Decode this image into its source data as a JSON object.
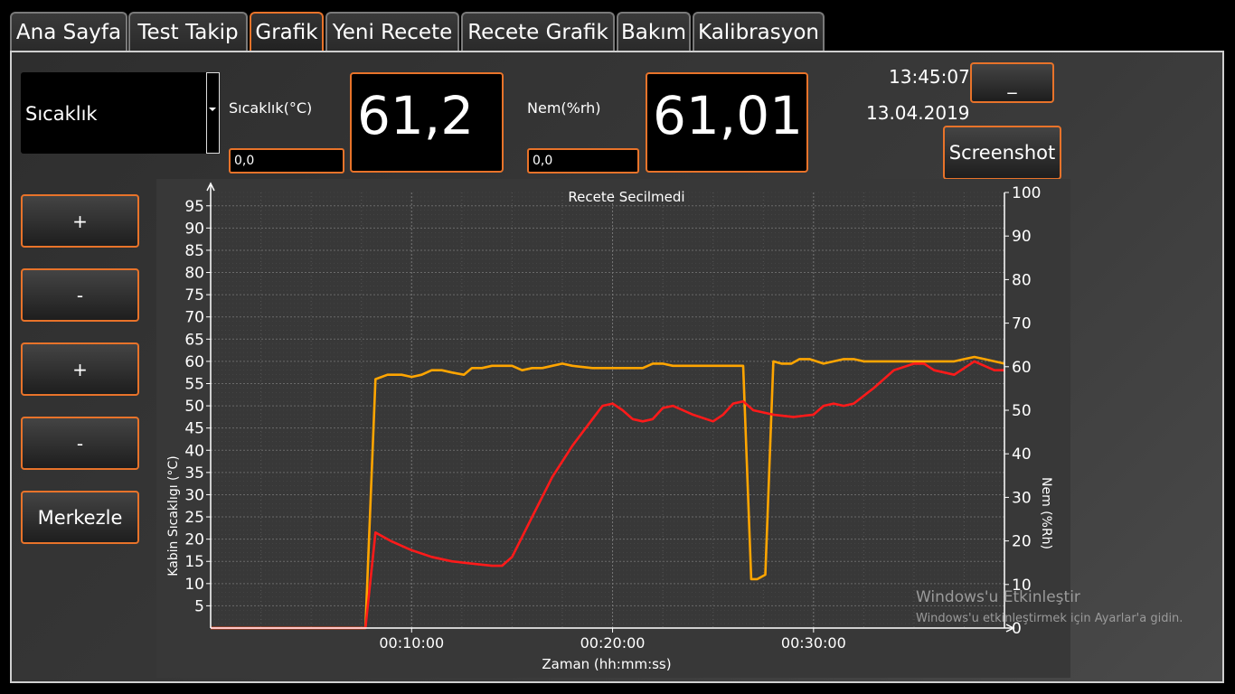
{
  "tabs": [
    {
      "label": "Ana Sayfa"
    },
    {
      "label": "Test Takip"
    },
    {
      "label": "Grafik"
    },
    {
      "label": "Yeni Recete"
    },
    {
      "label": "Recete Grafik"
    },
    {
      "label": "Bakım"
    },
    {
      "label": "Kalibrasyon"
    }
  ],
  "active_tab": "Grafik",
  "selector": {
    "value": "Sıcaklık"
  },
  "temperature": {
    "label": "Sıcaklık(°C)",
    "input_value": "0,0",
    "display": "61,2"
  },
  "humidity": {
    "label": "Nem(%rh)",
    "input_value": "0,0",
    "display": "61,01"
  },
  "clock": {
    "time": "13:45:07",
    "date": "13.04.2019"
  },
  "minimize_label": "_",
  "screenshot_label": "Screenshot",
  "side_buttons": [
    {
      "label": "+"
    },
    {
      "label": "-"
    },
    {
      "label": "+"
    },
    {
      "label": "-"
    }
  ],
  "center_label": "Merkezle",
  "watermark": {
    "line1": "Windows'u Etkinleştir",
    "line2": "Windows'u etkinleştirmek için Ayarlar'a gidin."
  },
  "colors": {
    "accent": "#e8732a",
    "temp_series": "#ffa500",
    "hum_series": "#ff1a1a"
  },
  "chart_data": {
    "type": "line",
    "title": "Recete Secilmedi",
    "xlabel": "Zaman (hh:mm:ss)",
    "ylabel_left": "Kabin Sıcaklıgı (°C)",
    "ylabel_right": "Nem (%Rh)",
    "xlim_minutes": [
      0,
      39.5
    ],
    "ylim_left": [
      0,
      98
    ],
    "ylim_right": [
      0,
      100
    ],
    "x_ticks": [
      {
        "value": 10,
        "label": "00:10:00"
      },
      {
        "value": 20,
        "label": "00:20:00"
      },
      {
        "value": 30,
        "label": "00:30:00"
      }
    ],
    "y_left_ticks": [
      5,
      10,
      15,
      20,
      25,
      30,
      35,
      40,
      45,
      50,
      55,
      60,
      65,
      70,
      75,
      80,
      85,
      90,
      95
    ],
    "y_right_ticks": [
      0,
      10,
      20,
      30,
      40,
      50,
      60,
      70,
      80,
      90,
      100
    ],
    "grid": true,
    "series": [
      {
        "axis": "left",
        "color": "#ffa500",
        "x": [
          0,
          7.7,
          8.2,
          8.8,
          9.5,
          10,
          10.5,
          11,
          11.5,
          12,
          12.6,
          13,
          13.5,
          14,
          14.5,
          15,
          15.5,
          16,
          16.5,
          17,
          17.5,
          18,
          19,
          20,
          21,
          21.5,
          22,
          22.5,
          23,
          24,
          25,
          26,
          26.5,
          26.9,
          27.2,
          27.6,
          28.0,
          28.4,
          28.9,
          29.3,
          29.8,
          30.5,
          31,
          31.5,
          32,
          32.5,
          33,
          33.5,
          34,
          35,
          36,
          37,
          37.5,
          38,
          38.5,
          39,
          39.5
        ],
        "values": [
          0,
          0,
          56,
          57,
          57,
          56.5,
          57,
          58,
          58,
          57.5,
          57,
          58.5,
          58.5,
          59,
          59,
          59,
          58,
          58.5,
          58.5,
          59,
          59.5,
          59,
          58.5,
          58.5,
          58.5,
          58.5,
          59.5,
          59.5,
          59,
          59,
          59,
          59,
          59,
          11,
          11,
          12,
          60,
          59.5,
          59.5,
          60.5,
          60.5,
          59.5,
          60,
          60.5,
          60.5,
          60,
          60,
          60,
          60,
          60,
          60,
          60,
          60.5,
          61,
          60.5,
          60,
          59.5
        ]
      },
      {
        "axis": "left",
        "color": "#ff1a1a",
        "x": [
          0,
          7.7,
          8.2,
          9,
          10,
          11,
          12,
          13,
          14,
          14.5,
          15,
          16,
          17,
          18,
          19,
          19.5,
          20,
          20.5,
          21,
          21.5,
          22,
          22.5,
          23,
          24,
          25,
          25.5,
          26,
          26.5,
          27,
          28,
          29,
          30,
          30.5,
          31,
          31.5,
          32,
          33,
          34,
          35,
          35.5,
          36,
          37,
          38,
          39,
          39.5
        ],
        "values": [
          0,
          0,
          21.5,
          19.5,
          17.5,
          16,
          15,
          14.5,
          14,
          14,
          16,
          25,
          34,
          41,
          47,
          50,
          50.5,
          49,
          47,
          46.5,
          47,
          49.5,
          50,
          48,
          46.5,
          48,
          50.5,
          51,
          49,
          48,
          47.5,
          48,
          50,
          50.5,
          50,
          50.5,
          54,
          58,
          59.5,
          59.5,
          58,
          57,
          60,
          58,
          58
        ]
      }
    ]
  }
}
